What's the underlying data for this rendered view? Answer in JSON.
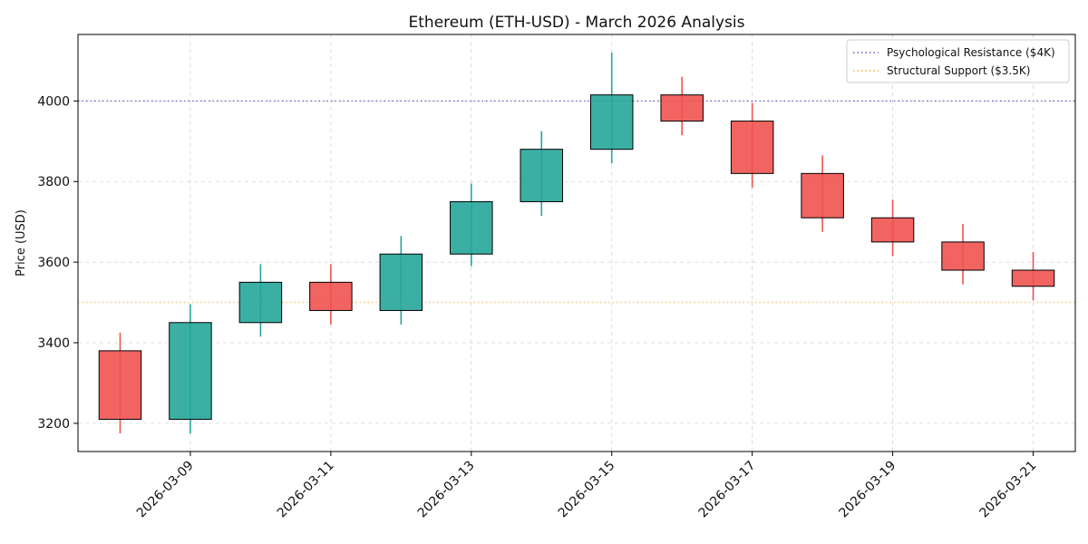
{
  "chart_data": {
    "type": "candlestick",
    "title": "Ethereum (ETH-USD) - March 2026 Analysis",
    "xlabel": "",
    "ylabel": "Price (USD)",
    "ylim": [
      3130,
      4165
    ],
    "x_tick_labels": [
      "2026-03-09",
      "2026-03-11",
      "2026-03-13",
      "2026-03-15",
      "2026-03-17",
      "2026-03-19",
      "2026-03-21"
    ],
    "y_ticks": [
      3200,
      3400,
      3600,
      3800,
      4000
    ],
    "grid": true,
    "legend_position": "top-right",
    "candles": [
      {
        "date": "2026-03-08",
        "open": 3380,
        "high": 3425,
        "low": 3175,
        "close": 3210
      },
      {
        "date": "2026-03-09",
        "open": 3210,
        "high": 3495,
        "low": 3175,
        "close": 3450
      },
      {
        "date": "2026-03-10",
        "open": 3450,
        "high": 3595,
        "low": 3415,
        "close": 3550
      },
      {
        "date": "2026-03-11",
        "open": 3550,
        "high": 3595,
        "low": 3445,
        "close": 3480
      },
      {
        "date": "2026-03-12",
        "open": 3480,
        "high": 3665,
        "low": 3445,
        "close": 3620
      },
      {
        "date": "2026-03-13",
        "open": 3620,
        "high": 3795,
        "low": 3590,
        "close": 3750
      },
      {
        "date": "2026-03-14",
        "open": 3750,
        "high": 3925,
        "low": 3715,
        "close": 3880
      },
      {
        "date": "2026-03-15",
        "open": 3880,
        "high": 4120,
        "low": 3845,
        "close": 4015
      },
      {
        "date": "2026-03-16",
        "open": 4015,
        "high": 4060,
        "low": 3915,
        "close": 3950
      },
      {
        "date": "2026-03-17",
        "open": 3950,
        "high": 3995,
        "low": 3785,
        "close": 3820
      },
      {
        "date": "2026-03-18",
        "open": 3820,
        "high": 3865,
        "low": 3675,
        "close": 3710
      },
      {
        "date": "2026-03-19",
        "open": 3710,
        "high": 3755,
        "low": 3615,
        "close": 3650
      },
      {
        "date": "2026-03-20",
        "open": 3650,
        "high": 3695,
        "low": 3545,
        "close": 3580
      },
      {
        "date": "2026-03-21",
        "open": 3580,
        "high": 3625,
        "low": 3505,
        "close": 3540
      }
    ],
    "reference_lines": [
      {
        "name": "Psychological Resistance ($4K)",
        "value": 4000,
        "color": "#6a5acd"
      },
      {
        "name": "Structural Support ($3.5K)",
        "value": 3500,
        "color": "#f5b041"
      }
    ],
    "colors": {
      "up": "#26a69a",
      "down": "#ef5350",
      "edge": "#000000"
    }
  }
}
